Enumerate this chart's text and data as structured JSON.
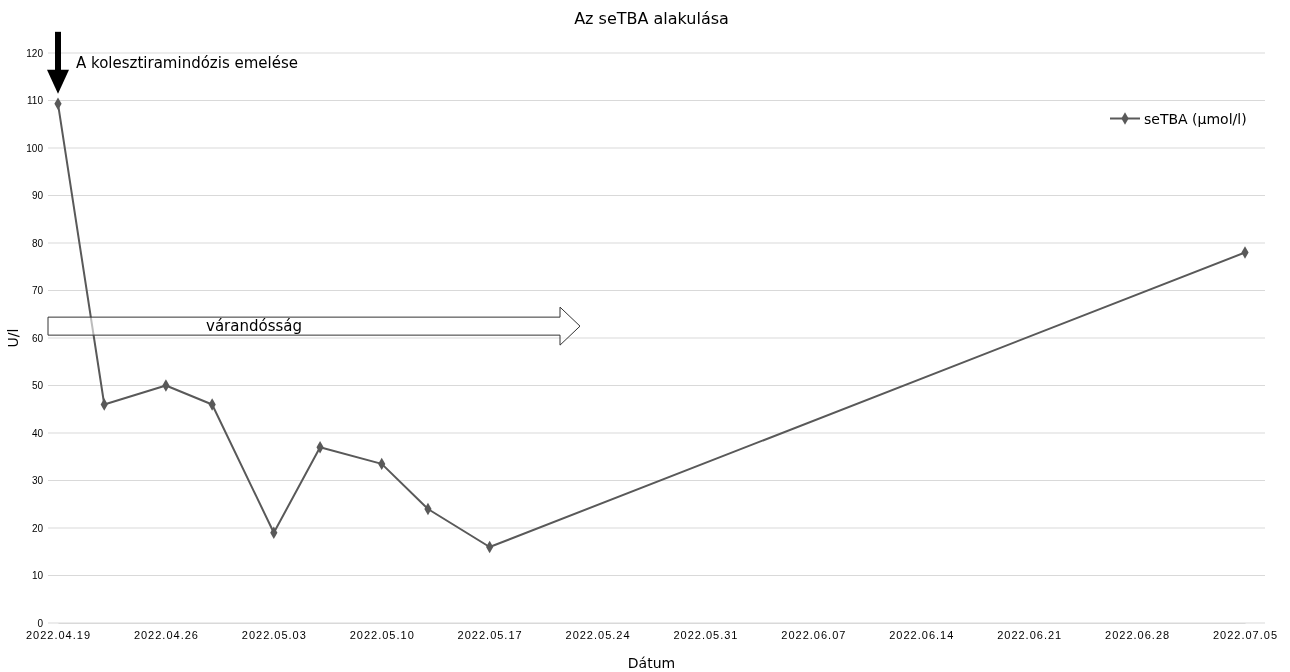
{
  "chart_data": {
    "type": "line",
    "title": "Az seTBA alakulása",
    "xlabel": "Dátum",
    "ylabel": "U/l",
    "x": [
      "2022-04-19",
      "2022-04-22",
      "2022-04-26",
      "2022-04-29",
      "2022-05-03",
      "2022-05-06",
      "2022-05-10",
      "2022-05-13",
      "2022-05-17",
      "2022-07-05"
    ],
    "series": [
      {
        "name": "seTBA (µmol/l)",
        "color": "#595959",
        "values": [
          109.3,
          46,
          50,
          46,
          19,
          37,
          33.5,
          24,
          16,
          78
        ]
      }
    ],
    "xlim": [
      "2022-04-19",
      "2022-07-05"
    ],
    "xticks": [
      {
        "value": "2022-04-19",
        "label": "2022.04.19"
      },
      {
        "value": "2022-04-26",
        "label": "2022.04.26"
      },
      {
        "value": "2022-05-03",
        "label": "2022.05.03"
      },
      {
        "value": "2022-05-10",
        "label": "2022.05.10"
      },
      {
        "value": "2022-05-17",
        "label": "2022.05.17"
      },
      {
        "value": "2022-05-24",
        "label": "2022.05.24"
      },
      {
        "value": "2022-05-31",
        "label": "2022.05.31"
      },
      {
        "value": "2022-06-07",
        "label": "2022.06.07"
      },
      {
        "value": "2022-06-14",
        "label": "2022.06.14"
      },
      {
        "value": "2022-06-21",
        "label": "2022.06.21"
      },
      {
        "value": "2022-06-28",
        "label": "2022.06.28"
      },
      {
        "value": "2022-07-05",
        "label": "2022.07.05"
      }
    ],
    "ylim": [
      0,
      120
    ],
    "yticks": [
      0,
      10,
      20,
      30,
      40,
      50,
      60,
      70,
      80,
      90,
      100,
      110,
      120
    ],
    "grid": "y",
    "legend": "top right",
    "marker": "diamond",
    "line_style": "solid",
    "annotations": [
      {
        "text": "A kolesztiramindózis emelése",
        "x": "2022-04-19",
        "y": 109.3
      },
      "várandósság"
    ]
  }
}
